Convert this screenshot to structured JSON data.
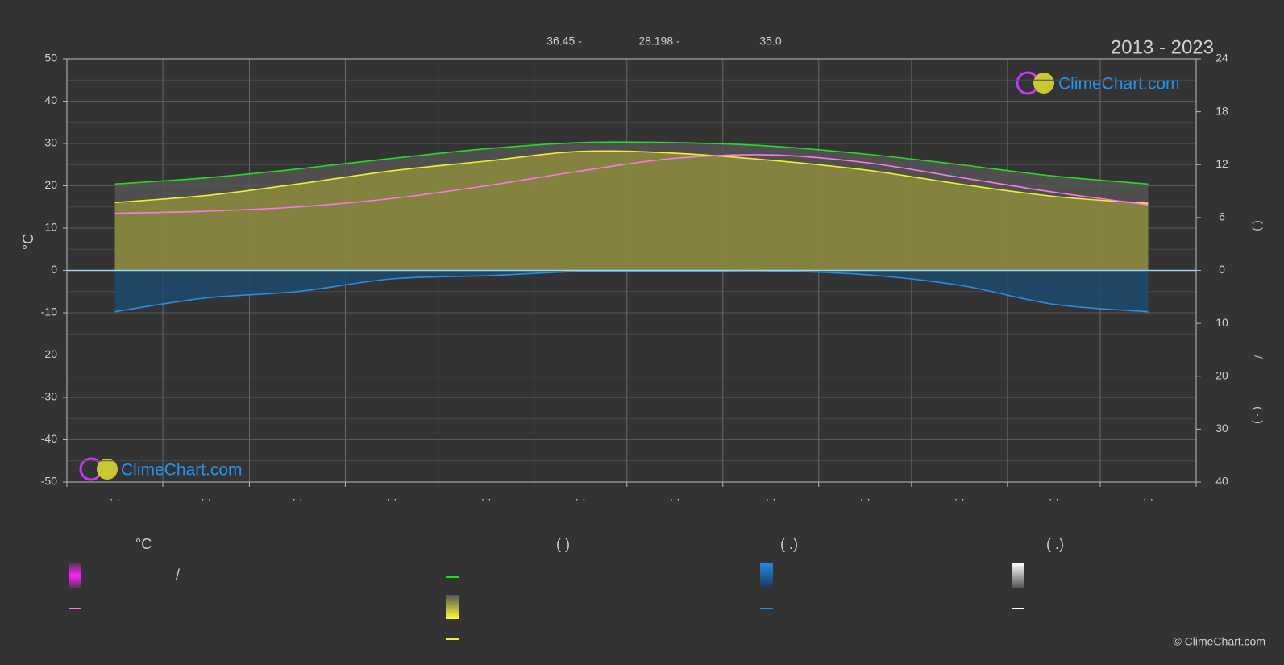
{
  "chart_data": {
    "type": "line",
    "title": "2013 - 2023",
    "annotations": [
      "36.45 -",
      "28.198 -",
      "35.0"
    ],
    "y_label": "°C",
    "y2_label_parts": [
      "(     )",
      "/",
      "(  ·  )"
    ],
    "categories": [
      "· ·",
      "· ·",
      "· ·",
      "· ·",
      "· ·",
      "· ·",
      "· ·",
      "· ·",
      "· ·",
      "· ·",
      "· ·",
      "· ·"
    ],
    "ylim": [
      -50,
      50
    ],
    "yticks": [
      -50,
      -40,
      -30,
      -20,
      -10,
      0,
      10,
      20,
      30,
      40,
      50
    ],
    "y2lim": [
      0,
      24
    ],
    "y2ticks": [
      0,
      6,
      12,
      18,
      24
    ],
    "y3lim": [
      0,
      40
    ],
    "y3ticks": [
      0,
      10,
      20,
      30,
      40
    ],
    "grid": true,
    "series": [
      {
        "name": "—",
        "color": "#22dd22",
        "axis": "y2",
        "area": "#555555",
        "values": [
          9.8,
          10.5,
          11.5,
          12.7,
          13.8,
          14.5,
          14.5,
          14.1,
          13.2,
          12.0,
          10.7,
          9.8
        ]
      },
      {
        "name": "—",
        "color": "#f0f030",
        "axis": "y2",
        "area": "#8c8c3c",
        "values": [
          7.7,
          8.5,
          9.8,
          11.3,
          12.4,
          13.5,
          13.3,
          12.5,
          11.4,
          9.8,
          8.4,
          7.6
        ]
      },
      {
        "name": "—",
        "color": "#ff77ee",
        "axis": "y",
        "values": [
          13.5,
          14,
          15,
          17,
          20,
          23.5,
          26.5,
          27.3,
          25.5,
          22,
          18.5,
          15.5
        ]
      },
      {
        "name": "—",
        "color": "#2a8ee0",
        "axis": "y3",
        "area": "#1d4a6e",
        "values": [
          7.8,
          5.2,
          4.0,
          1.6,
          1.0,
          0.2,
          0.2,
          0.1,
          0.8,
          2.8,
          6.4,
          7.8
        ]
      }
    ],
    "legend_headers": [
      "°C",
      "(          )",
      "(   .)",
      "(   .)"
    ],
    "legend_note": "/",
    "logo": "ClimeChart.com",
    "copyright": "© ClimeChart.com"
  }
}
